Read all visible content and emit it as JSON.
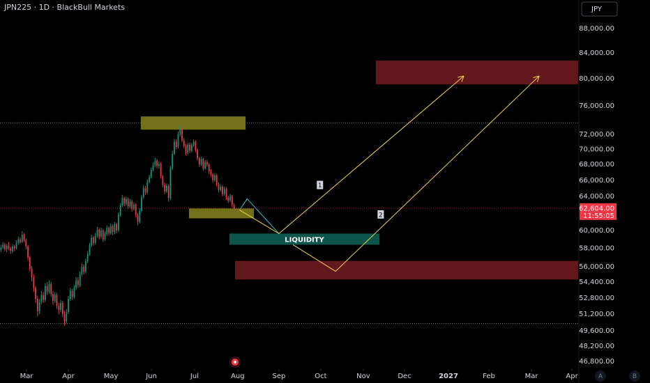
{
  "chart_data": {
    "type": "candlestick",
    "title": "JPN225 · 1D · BlackBull Markets",
    "currency": "JPY",
    "up_color": "#089981",
    "down_color": "#f23645",
    "log_scale": true,
    "xlim": [
      -0.5,
      300
    ],
    "ylim": [
      46130,
      92900
    ],
    "xticks": [
      {
        "value": 13.3,
        "label": "Mar"
      },
      {
        "value": 35.0,
        "label": "Apr"
      },
      {
        "value": 57.1,
        "label": "May"
      },
      {
        "value": 78.1,
        "label": "Jun"
      },
      {
        "value": 100.5,
        "label": "Jul"
      },
      {
        "value": 122.9,
        "label": "Aug"
      },
      {
        "value": 144.3,
        "label": "Sep"
      },
      {
        "value": 166.0,
        "label": "Oct"
      },
      {
        "value": 188.1,
        "label": "Nov"
      },
      {
        "value": 209.5,
        "label": "Dec"
      },
      {
        "value": 232.3,
        "label": "2027",
        "bold": true
      },
      {
        "value": 253.3,
        "label": "Feb"
      },
      {
        "value": 275.4,
        "label": "Mar"
      },
      {
        "value": 296.4,
        "label": "Apr"
      }
    ],
    "yticks": [
      {
        "value": 88000,
        "label": "88,000.00"
      },
      {
        "value": 84000,
        "label": "84,000.00"
      },
      {
        "value": 80000,
        "label": "80,000.00"
      },
      {
        "value": 76000,
        "label": "76,000.00"
      },
      {
        "value": 72000,
        "label": "72,000.00"
      },
      {
        "value": 70000,
        "label": "70,000.00"
      },
      {
        "value": 68000,
        "label": "68,000.00"
      },
      {
        "value": 66000,
        "label": "66,000.00"
      },
      {
        "value": 64000,
        "label": "64,000.00"
      },
      {
        "value": 60000,
        "label": "60,000.00"
      },
      {
        "value": 58000,
        "label": "58,000.00"
      },
      {
        "value": 56000,
        "label": "56,000.00"
      },
      {
        "value": 54400,
        "label": "54,400.00"
      },
      {
        "value": 52800,
        "label": "52,800.00"
      },
      {
        "value": 51200,
        "label": "51,200.00"
      },
      {
        "value": 49600,
        "label": "49,600.00"
      },
      {
        "value": 48200,
        "label": "48,200.00"
      },
      {
        "value": 46800,
        "label": "46,800.00"
      }
    ],
    "last_price": {
      "value": 62604,
      "label": "62,604.00",
      "countdown": "11:55:05",
      "color": "#f23645"
    },
    "levels": [
      73610,
      50290
    ],
    "candles": [
      [
        57800,
        58400,
        57600,
        58100
      ],
      [
        58100,
        58700,
        57900,
        58400
      ],
      [
        58400,
        58600,
        57700,
        57900
      ],
      [
        57900,
        58500,
        57600,
        58300
      ],
      [
        58300,
        58700,
        57800,
        58000
      ],
      [
        58000,
        58200,
        57400,
        57700
      ],
      [
        57700,
        58500,
        57500,
        58200
      ],
      [
        58200,
        58400,
        57700,
        58000
      ],
      [
        58000,
        58900,
        57900,
        58600
      ],
      [
        58600,
        59300,
        58400,
        59000
      ],
      [
        59000,
        59200,
        58500,
        58700
      ],
      [
        58700,
        59900,
        58600,
        59500
      ],
      [
        59500,
        59700,
        58700,
        58900
      ],
      [
        58900,
        59100,
        57900,
        58200
      ],
      [
        58200,
        58400,
        56700,
        57000
      ],
      [
        57000,
        57200,
        55500,
        55800
      ],
      [
        55800,
        56100,
        54500,
        54900
      ],
      [
        54900,
        55200,
        53400,
        53800
      ],
      [
        53800,
        54000,
        52300,
        52700
      ],
      [
        52700,
        53000,
        51000,
        51500
      ],
      [
        51500,
        52700,
        51200,
        52400
      ],
      [
        52400,
        53500,
        52200,
        53100
      ],
      [
        53100,
        53400,
        52300,
        52600
      ],
      [
        52600,
        54300,
        52400,
        54000
      ],
      [
        54000,
        54400,
        53100,
        53400
      ],
      [
        53400,
        54600,
        53200,
        54200
      ],
      [
        54200,
        54400,
        52900,
        53200
      ],
      [
        53200,
        53500,
        52100,
        52500
      ],
      [
        52500,
        53400,
        52300,
        53100
      ],
      [
        53100,
        53300,
        51700,
        52000
      ],
      [
        52000,
        52300,
        51200,
        51600
      ],
      [
        51600,
        52600,
        51400,
        52300
      ],
      [
        52300,
        52500,
        50900,
        51200
      ],
      [
        51200,
        51500,
        50100,
        50500
      ],
      [
        50500,
        51700,
        50300,
        51400
      ],
      [
        51400,
        53000,
        51200,
        52700
      ],
      [
        52700,
        53800,
        52500,
        53500
      ],
      [
        53500,
        53700,
        52600,
        52900
      ],
      [
        52900,
        54100,
        52700,
        53800
      ],
      [
        53800,
        54900,
        53600,
        54600
      ],
      [
        54600,
        54900,
        53800,
        54100
      ],
      [
        54100,
        55500,
        53900,
        55200
      ],
      [
        55200,
        56400,
        55000,
        56000
      ],
      [
        56000,
        56300,
        55200,
        55500
      ],
      [
        55500,
        56900,
        55300,
        56600
      ],
      [
        56600,
        57700,
        56400,
        57400
      ],
      [
        57400,
        58600,
        57200,
        58300
      ],
      [
        58300,
        59500,
        58100,
        59200
      ],
      [
        59200,
        59400,
        58300,
        58600
      ],
      [
        58600,
        59700,
        58400,
        59400
      ],
      [
        59400,
        60400,
        59200,
        60100
      ],
      [
        60100,
        60300,
        59000,
        59300
      ],
      [
        59300,
        60300,
        59100,
        60000
      ],
      [
        60000,
        60200,
        58700,
        59000
      ],
      [
        59000,
        59900,
        58800,
        59600
      ],
      [
        59600,
        60600,
        59400,
        60300
      ],
      [
        60300,
        60500,
        59400,
        59700
      ],
      [
        59700,
        60800,
        59500,
        60500
      ],
      [
        60500,
        60700,
        59500,
        59800
      ],
      [
        59800,
        61000,
        59600,
        60700
      ],
      [
        60700,
        60900,
        59700,
        60000
      ],
      [
        60000,
        62100,
        59800,
        61800
      ],
      [
        61800,
        63200,
        61600,
        62900
      ],
      [
        62900,
        64200,
        62700,
        63800
      ],
      [
        63800,
        64000,
        62800,
        63100
      ],
      [
        63100,
        64000,
        62900,
        63700
      ],
      [
        63700,
        63900,
        62500,
        62800
      ],
      [
        62800,
        63700,
        62600,
        63400
      ],
      [
        63400,
        63600,
        62200,
        62500
      ],
      [
        62500,
        63300,
        62300,
        63000
      ],
      [
        63000,
        63200,
        61500,
        61800
      ],
      [
        61800,
        62000,
        60600,
        61000
      ],
      [
        61000,
        62600,
        60800,
        62300
      ],
      [
        62300,
        64200,
        62100,
        63900
      ],
      [
        63900,
        65400,
        63700,
        65000
      ],
      [
        65000,
        65300,
        64200,
        64500
      ],
      [
        64500,
        66100,
        64300,
        65800
      ],
      [
        65800,
        66700,
        65600,
        66400
      ],
      [
        66400,
        67600,
        66200,
        67300
      ],
      [
        67300,
        68300,
        67100,
        67900
      ],
      [
        67900,
        68900,
        67700,
        68500
      ],
      [
        68500,
        68700,
        67500,
        67800
      ],
      [
        67800,
        68400,
        67500,
        68100
      ],
      [
        68100,
        68300,
        66200,
        66500
      ],
      [
        66500,
        66700,
        65100,
        65400
      ],
      [
        65400,
        65700,
        64300,
        64600
      ],
      [
        64600,
        65600,
        64400,
        65300
      ],
      [
        65300,
        65500,
        63400,
        63800
      ],
      [
        63800,
        67800,
        63600,
        67500
      ],
      [
        67500,
        69800,
        67300,
        69400
      ],
      [
        69400,
        71400,
        69200,
        71000
      ],
      [
        71000,
        71300,
        70000,
        70300
      ],
      [
        70300,
        72400,
        70100,
        72000
      ],
      [
        72000,
        73200,
        71700,
        72800
      ],
      [
        72800,
        73000,
        70900,
        71200
      ],
      [
        71200,
        71500,
        70100,
        70400
      ],
      [
        70400,
        70700,
        69200,
        69500
      ],
      [
        69500,
        70900,
        69300,
        70600
      ],
      [
        70600,
        70900,
        69500,
        69800
      ],
      [
        69800,
        70800,
        69600,
        70500
      ],
      [
        70500,
        71300,
        70300,
        71000
      ],
      [
        71000,
        71200,
        69600,
        69900
      ],
      [
        69900,
        70100,
        68500,
        68800
      ],
      [
        68800,
        69000,
        67700,
        68000
      ],
      [
        68000,
        69000,
        67800,
        68700
      ],
      [
        68700,
        68900,
        67200,
        67500
      ],
      [
        67500,
        68600,
        67300,
        68300
      ],
      [
        68300,
        68600,
        67700,
        68000
      ],
      [
        68000,
        68200,
        66800,
        67100
      ],
      [
        67100,
        67400,
        66400,
        66700
      ],
      [
        66700,
        66900,
        65700,
        66000
      ],
      [
        66000,
        66900,
        65800,
        66600
      ],
      [
        66600,
        66800,
        65200,
        65500
      ],
      [
        65500,
        65700,
        64500,
        64800
      ],
      [
        64800,
        65500,
        64600,
        65200
      ],
      [
        65200,
        65400,
        64000,
        64300
      ],
      [
        64300,
        65200,
        64100,
        64900
      ],
      [
        64900,
        65100,
        63600,
        63900
      ],
      [
        63900,
        64100,
        63200,
        63500
      ],
      [
        63500,
        64300,
        63300,
        64000
      ],
      [
        64000,
        64200,
        62700,
        63000
      ],
      [
        63000,
        63200,
        62400,
        62604
      ]
    ],
    "zones": [
      {
        "x": [
          72.6,
          127.0
        ],
        "y": [
          72640,
          74490
        ],
        "color": "#7d7a1c"
      },
      {
        "x": [
          97.6,
          131.3
        ],
        "y": [
          61400,
          62560
        ],
        "color": "#7d7a1c"
      },
      {
        "x": [
          194.6,
          299.6
        ],
        "y": [
          79170,
          82810
        ],
        "color": "#6b1a1f"
      },
      {
        "x": [
          118.6,
          196.5
        ],
        "y": [
          58400,
          59650
        ],
        "color": "#0f5c52",
        "label": "LIQUIDITY"
      },
      {
        "x": [
          121.5,
          299.6
        ],
        "y": [
          54670,
          56640
        ],
        "color": "#6b1a1f"
      }
    ],
    "paths": [
      {
        "color": "#26c6da",
        "points": [
          [
            124.2,
            62470
          ],
          [
            127.8,
            63720
          ],
          [
            144.3,
            59650
          ]
        ]
      },
      {
        "color": "#f2d34b",
        "label": "1",
        "points": [
          [
            123.8,
            62390
          ],
          [
            144.3,
            59650
          ],
          [
            240.3,
            80430
          ]
        ]
      },
      {
        "color": "#f2d34b",
        "label": "2",
        "points": [
          [
            151.6,
            58400
          ],
          [
            173.7,
            55530
          ],
          [
            279.4,
            80430
          ]
        ]
      }
    ],
    "scale_buttons": [
      "A",
      "B"
    ]
  }
}
